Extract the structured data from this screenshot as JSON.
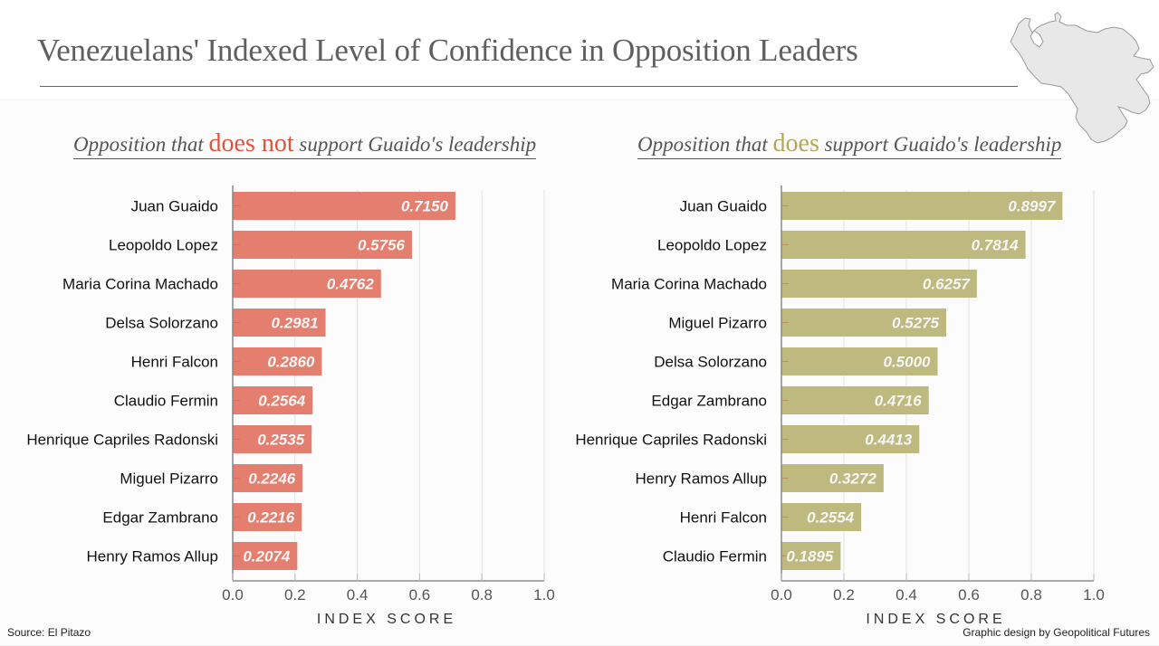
{
  "header": {
    "title": "Venezuelans' Indexed Level of Confidence in Opposition Leaders",
    "map_icon": "venezuela-map-icon"
  },
  "colors": {
    "not_support": "#e47f70",
    "support": "#bdb97f",
    "not_support_emph": "#d9553f",
    "support_emph": "#b2a85a"
  },
  "chart_data": [
    {
      "type": "bar",
      "orientation": "horizontal",
      "title_parts": [
        "Opposition that ",
        "does not",
        " support Guaido's leadership"
      ],
      "categories": [
        "Juan Guaido",
        "Leopoldo Lopez",
        "Maria Corina Machado",
        "Delsa Solorzano",
        "Henri Falcon",
        "Claudio Fermin",
        "Henrique Capriles Radonski",
        "Miguel Pizarro",
        "Edgar Zambrano",
        "Henry Ramos Allup"
      ],
      "values": [
        0.715,
        0.5756,
        0.4762,
        0.2981,
        0.286,
        0.2564,
        0.2535,
        0.2246,
        0.2216,
        0.2074
      ],
      "data_labels": [
        "0.7150",
        "0.5756",
        "0.4762",
        "0.2981",
        "0.2860",
        "0.2564",
        "0.2535",
        "0.2246",
        "0.2216",
        "0.2074"
      ],
      "xlabel": "INDEX SCORE",
      "ylabel": "",
      "xlim": [
        0,
        1.0
      ],
      "xticks": [
        "0.0",
        "0.2",
        "0.4",
        "0.6",
        "0.8",
        "1.0"
      ],
      "grid": true,
      "color": "#e47f70"
    },
    {
      "type": "bar",
      "orientation": "horizontal",
      "title_parts": [
        "Opposition that ",
        "does",
        " support Guaido's leadership"
      ],
      "categories": [
        "Juan Guaido",
        "Leopoldo Lopez",
        "Maria Corina Machado",
        "Miguel Pizarro",
        "Delsa Solorzano",
        "Edgar Zambrano",
        "Henrique Capriles Radonski",
        "Henry Ramos Allup",
        "Henri Falcon",
        "Claudio Fermin"
      ],
      "values": [
        0.8997,
        0.7814,
        0.6257,
        0.5275,
        0.5,
        0.4716,
        0.4413,
        0.3272,
        0.2554,
        0.1895
      ],
      "data_labels": [
        "0.8997",
        "0.7814",
        "0.6257",
        "0.5275",
        "0.5000",
        "0.4716",
        "0.4413",
        "0.3272",
        "0.2554",
        "0.1895"
      ],
      "xlabel": "INDEX SCORE",
      "ylabel": "",
      "xlim": [
        0,
        1.0
      ],
      "xticks": [
        "0.0",
        "0.2",
        "0.4",
        "0.6",
        "0.8",
        "1.0"
      ],
      "grid": true,
      "color": "#bdb97f"
    }
  ],
  "footer": {
    "source": "Source: El Pitazo",
    "credit": "Graphic design by Geopolitical Futures"
  }
}
